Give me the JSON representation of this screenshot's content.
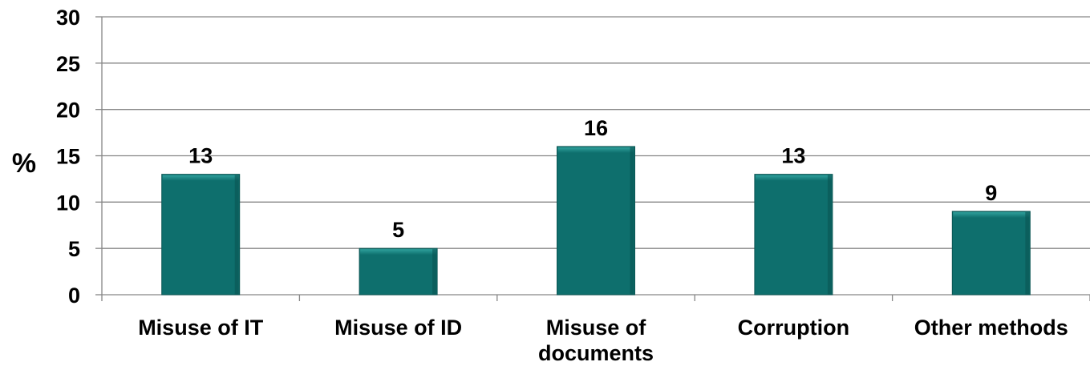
{
  "chart_data": {
    "type": "bar",
    "title": "",
    "xlabel": "",
    "ylabel": "%",
    "ylim": [
      0,
      30
    ],
    "yticks": [
      0,
      5,
      10,
      15,
      20,
      25,
      30
    ],
    "grid": true,
    "legend": "none",
    "categories": [
      [
        "Misuse of IT"
      ],
      [
        "Misuse of ID"
      ],
      [
        "Misuse of",
        "documents"
      ],
      [
        "Corruption"
      ],
      [
        "Other methods"
      ]
    ],
    "values": [
      13,
      5,
      16,
      13,
      9
    ],
    "data_labels": [
      "13",
      "5",
      "16",
      "13",
      "9"
    ],
    "colors": {
      "bar": "#0e6f6d",
      "bar_top": "#2fa09c",
      "bar_edge": "#0a5553",
      "grid": "#868686",
      "axis": "#868686"
    }
  }
}
